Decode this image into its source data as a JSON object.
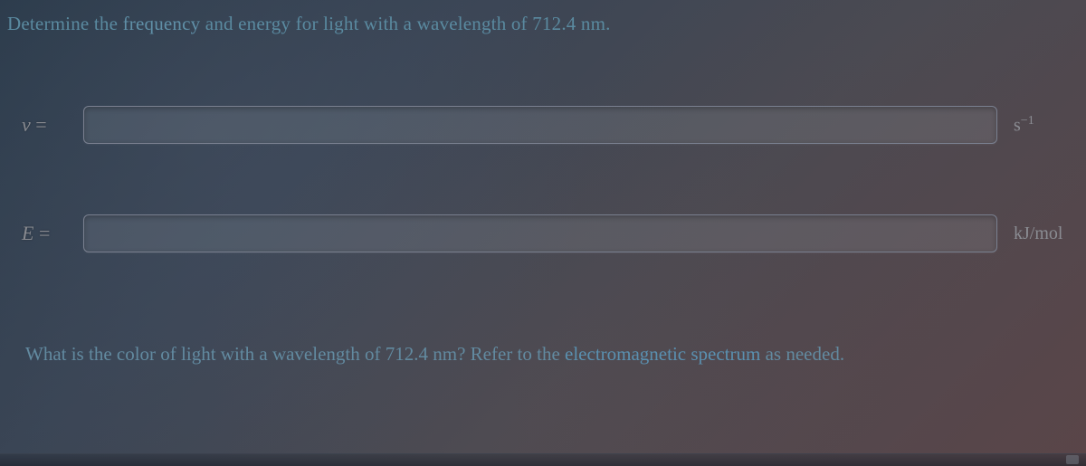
{
  "question1": {
    "prefix": "Determine the ",
    "keyword1": "frequency",
    "mid": " and energy for light with a wavelength of ",
    "value": "712.4 nm",
    "suffix": "."
  },
  "row1": {
    "var": "ν",
    "eq": " =",
    "value": "",
    "unit_base": "s",
    "unit_exp": "−1"
  },
  "row2": {
    "var": "E",
    "eq": " =",
    "value": "",
    "unit": "kJ/mol"
  },
  "question2": {
    "prefix": "What is the color of light with a wavelength of ",
    "value": "712.4 nm",
    "mid": "? Refer to the ",
    "link": "electromagnetic spectrum",
    "suffix": " as needed."
  }
}
